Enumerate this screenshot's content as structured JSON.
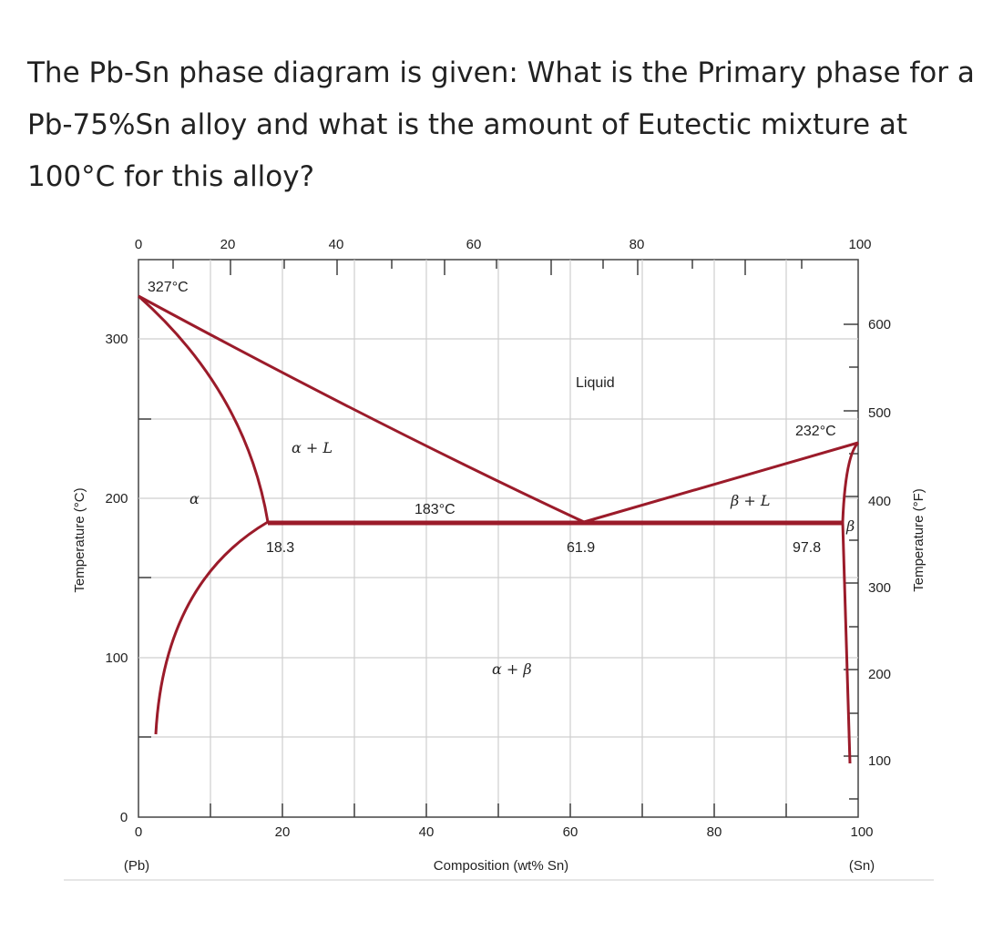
{
  "question": "The Pb-Sn phase diagram is given: What is the Primary phase for a Pb-75%Sn alloy and what is the amount of Eutectic mixture at 100°C for this alloy?",
  "diagram": {
    "top_ticks": [
      "0",
      "20",
      "40",
      "60",
      "80",
      "100"
    ],
    "bottom_ticks": [
      "0",
      "20",
      "40",
      "60",
      "80",
      "100"
    ],
    "left_ticks": [
      "0",
      "100",
      "200",
      "300"
    ],
    "right_ticks": [
      "100",
      "200",
      "300",
      "400",
      "500",
      "600"
    ],
    "xlabel": "Composition (wt% Sn)",
    "ylabel_left": "Temperature (°C)",
    "ylabel_right": "Temperature (°F)",
    "pb_label": "(Pb)",
    "sn_label": "(Sn)",
    "pb_melting": "327°C",
    "sn_melting": "232°C",
    "eutectic_temp": "183°C",
    "alpha_limit": "18.3",
    "eutectic_comp": "61.9",
    "beta_limit": "97.8",
    "liquid": "Liquid",
    "alpha_L": "α + L",
    "beta_L": "β + L",
    "alpha_beta": "α + β",
    "alpha": "α",
    "beta": "β",
    "colors": {
      "phase_line": "#9b1b2a",
      "grid": "#cfcfcf"
    },
    "points": {
      "pb_melt": [
        0,
        327
      ],
      "sn_melt": [
        100,
        232
      ],
      "eutectic": [
        61.9,
        183
      ],
      "alpha_max": [
        18.3,
        183
      ],
      "beta_max": [
        97.8,
        183
      ]
    }
  }
}
